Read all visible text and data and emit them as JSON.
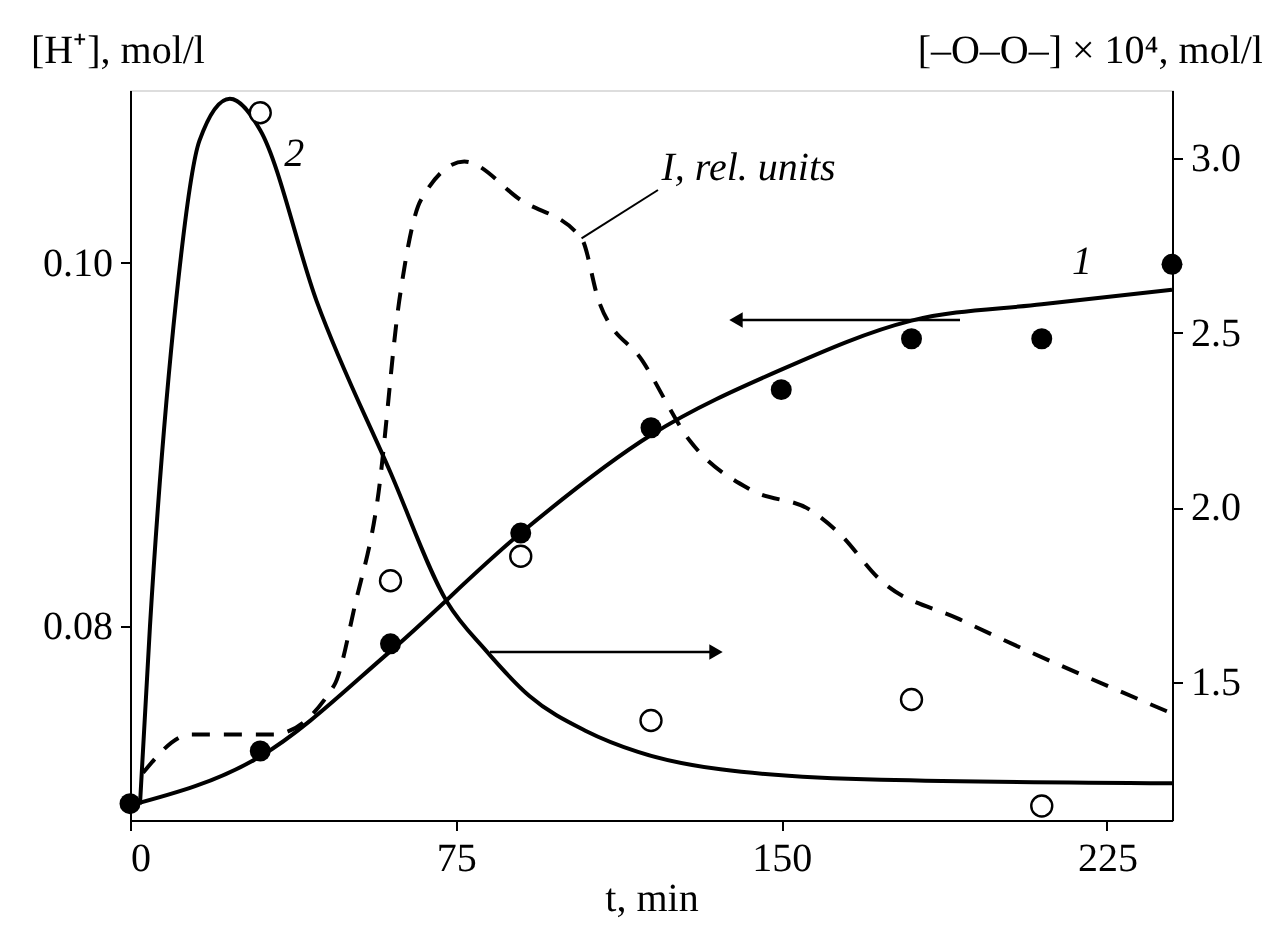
{
  "chart_data": {
    "type": "line",
    "xlabel": "t, min",
    "ylabel": "[H⁺], mol/l",
    "y2label": "[–O–O–] × 10⁴, mol/l",
    "xlim": [
      0,
      240
    ],
    "xticks": [
      0,
      75,
      150,
      225
    ],
    "ylim": [
      0.0693,
      0.1095
    ],
    "yticks": [
      0.08,
      {
        "value": 0.1,
        "label": "0.10"
      }
    ],
    "y2lim": [
      1.105,
      3.195
    ],
    "y2ticks": [
      1.5,
      {
        "value": 2,
        "label": "2.0"
      },
      2.5,
      {
        "value": 3,
        "label": "3.0"
      }
    ],
    "grid": false,
    "series": [
      {
        "name": "1",
        "color": "#000000",
        "line_style": "solid",
        "x": [
          0,
          30,
          60,
          90,
          120,
          150,
          180,
          210,
          240
        ],
        "values": [
          0.0701,
          0.0728,
          0.0786,
          0.0851,
          0.0905,
          0.0941,
          0.0968,
          0.0977,
          0.0985
        ]
      },
      {
        "type": "scatter",
        "color": "#000000",
        "marker": "circle",
        "x": [
          0,
          30,
          60,
          90,
          120,
          150,
          180,
          210,
          240
        ],
        "values": [
          0.0702,
          0.0731,
          0.079,
          0.0851,
          0.0909,
          0.093,
          0.0958,
          0.0958,
          0.0999
        ]
      },
      {
        "name": "2",
        "axis": "y2",
        "color": "#000000",
        "line_style": "solid",
        "x": [
          2.3,
          4.6,
          10.6,
          16,
          23,
          30,
          43,
          60,
          73,
          82,
          92,
          105,
          117,
          136,
          173,
          240
        ],
        "values": [
          1.15,
          1.66,
          2.59,
          3.05,
          3.17,
          3.08,
          2.59,
          2.1,
          1.73,
          1.59,
          1.46,
          1.36,
          1.3,
          1.25,
          1.22,
          1.21
        ]
      },
      {
        "type": "scatter",
        "axis": "y2",
        "color": "#000000",
        "marker": "circle",
        "x": [
          30,
          60,
          90,
          120,
          180,
          210
        ],
        "values": [
          3.13,
          1.79,
          1.86,
          1.39,
          1.45,
          1.145
        ]
      },
      {
        "name": "I, rel. units",
        "axis": "y2",
        "color": "#000000",
        "line_style": "dashed",
        "x": [
          3,
          14,
          33,
          47,
          52,
          57,
          62,
          67,
          77,
          90,
          104,
          108,
          118,
          129,
          143,
          157,
          163,
          173,
          191,
          240
        ],
        "values": [
          1.24,
          1.35,
          1.35,
          1.49,
          1.73,
          2.02,
          2.59,
          2.88,
          2.99,
          2.88,
          2.77,
          2.59,
          2.42,
          2.19,
          2.05,
          1.99,
          1.93,
          1.79,
          1.68,
          1.41
        ]
      }
    ]
  }
}
